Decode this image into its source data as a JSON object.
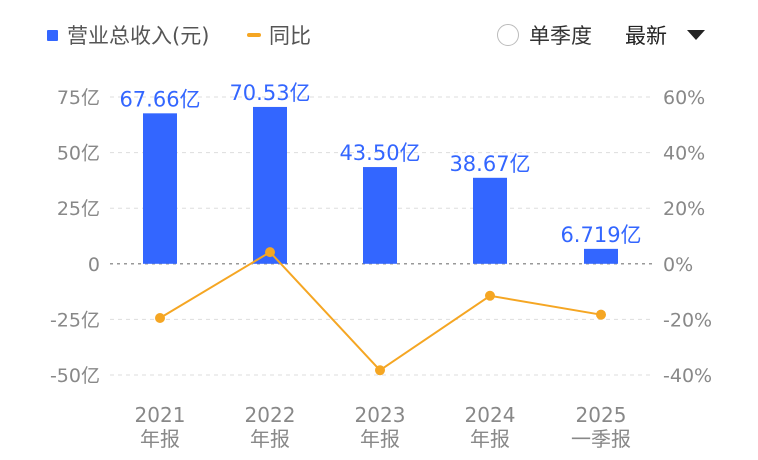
{
  "legend": {
    "bar_label": "营业总收入(元)",
    "line_label": "同比"
  },
  "controls": {
    "single_quarter_label": "单季度",
    "single_quarter_checked": false,
    "period_select": "最新"
  },
  "colors": {
    "bar": "#3366ff",
    "line": "#f5a623",
    "grid": "#dddddd",
    "axis_text": "#888888",
    "bar_label": "#3366ff"
  },
  "chart_data": {
    "type": "bar+line",
    "categories": [
      [
        "2021",
        "年报"
      ],
      [
        "2022",
        "年报"
      ],
      [
        "2023",
        "年报"
      ],
      [
        "2024",
        "年报"
      ],
      [
        "2025",
        "一季报"
      ]
    ],
    "bar_values": [
      67.66,
      70.53,
      43.5,
      38.67,
      6.719
    ],
    "bar_labels": [
      "67.66亿",
      "70.53亿",
      "43.50亿",
      "38.67亿",
      "6.719亿"
    ],
    "line_values": [
      -19.5,
      4.2,
      -38.3,
      -11.5,
      -18.3
    ],
    "left_axis": {
      "ticks": [
        75,
        50,
        25,
        0,
        -25,
        -50
      ],
      "tick_labels": [
        "75亿",
        "50亿",
        "25亿",
        "0",
        "-25亿",
        "-50亿"
      ],
      "range": [
        -50,
        75
      ]
    },
    "right_axis": {
      "ticks": [
        60,
        40,
        20,
        0,
        -20,
        -40
      ],
      "tick_labels": [
        "60%",
        "40%",
        "20%",
        "0%",
        "-20%",
        "-40%"
      ],
      "range": [
        -40,
        60
      ]
    },
    "grid": true
  }
}
